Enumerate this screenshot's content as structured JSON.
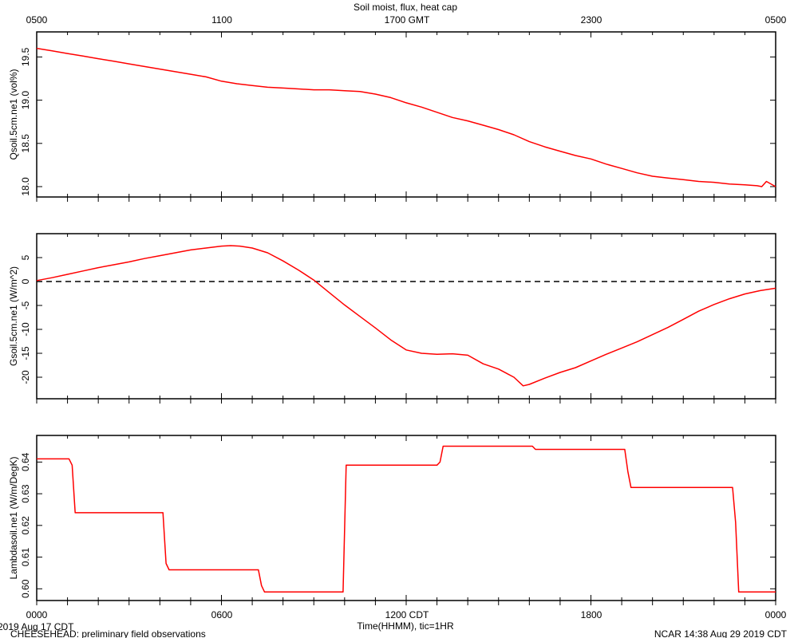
{
  "title": "Soil moist, flux, heat cap",
  "top_axis": {
    "ticks": [
      "0500",
      "1100",
      "1700 GMT",
      "2300",
      "0500"
    ]
  },
  "bottom_axis": {
    "ticks": [
      "0000",
      "0600",
      "1200 CDT",
      "1800",
      "0000"
    ],
    "label": "Time(HHMM), tic=1HR"
  },
  "footer": {
    "date": "2019 Aug 17 CDT",
    "project": "CHEESEHEAD: preliminary field observations",
    "stamp": "NCAR 14:38 Aug 29 2019 CDT"
  },
  "colors": {
    "series": "#ff0000",
    "axis": "#000000",
    "zero_line": "#000000"
  },
  "chart_data": [
    {
      "type": "line",
      "ylabel": "Qsoil.5cm.ne1 (vol%)",
      "ylim": [
        17.88,
        19.79
      ],
      "yticks": [
        18.0,
        18.5,
        19.0,
        19.5
      ],
      "ytick_labels": [
        "18.0",
        "18.5",
        "19.0",
        "19.5"
      ],
      "x_hours": [
        0,
        0.5,
        1,
        1.5,
        2,
        2.5,
        3,
        3.5,
        4,
        4.5,
        5,
        5.5,
        6,
        6.5,
        7,
        7.5,
        8,
        8.5,
        9,
        9.5,
        10,
        10.5,
        11,
        11.5,
        12,
        12.5,
        13,
        13.5,
        14,
        14.5,
        15,
        15.5,
        16,
        16.5,
        17,
        17.5,
        18,
        18.5,
        19,
        19.5,
        20,
        20.5,
        21,
        21.5,
        22,
        22.5,
        23,
        23.4,
        23.55,
        23.7,
        24
      ],
      "values": [
        19.6,
        19.57,
        19.54,
        19.51,
        19.48,
        19.45,
        19.42,
        19.39,
        19.36,
        19.33,
        19.3,
        19.27,
        19.22,
        19.19,
        19.17,
        19.15,
        19.14,
        19.13,
        19.12,
        19.12,
        19.11,
        19.1,
        19.07,
        19.03,
        18.97,
        18.92,
        18.86,
        18.8,
        18.76,
        18.71,
        18.66,
        18.6,
        18.52,
        18.46,
        18.41,
        18.36,
        18.32,
        18.26,
        18.21,
        18.16,
        18.12,
        18.1,
        18.08,
        18.06,
        18.05,
        18.03,
        18.02,
        18.01,
        18.0,
        18.06,
        18.0
      ]
    },
    {
      "type": "line",
      "ylabel": "Gsoil.5cm.ne1 (W/m^2)",
      "ylim": [
        -24.5,
        10
      ],
      "yticks": [
        -20,
        -15,
        -10,
        -5,
        0,
        5
      ],
      "ytick_labels": [
        "-20",
        "-15",
        "-10",
        "-5",
        "0",
        "5"
      ],
      "reference_line": 0,
      "x_hours": [
        0,
        0.5,
        1,
        1.5,
        2,
        2.5,
        3,
        3.5,
        4,
        4.5,
        5,
        5.5,
        6,
        6.3,
        6.6,
        7,
        7.5,
        8,
        8.5,
        9,
        9.5,
        10,
        10.5,
        11,
        11.5,
        12,
        12.5,
        13,
        13.5,
        14,
        14.5,
        15,
        15.5,
        15.8,
        16,
        16.5,
        17,
        17.5,
        18,
        18.5,
        19,
        19.5,
        20,
        20.5,
        21,
        21.5,
        22,
        22.5,
        23,
        23.5,
        24
      ],
      "values": [
        0.2,
        0.8,
        1.5,
        2.2,
        2.9,
        3.5,
        4.1,
        4.8,
        5.4,
        6.0,
        6.6,
        7.0,
        7.4,
        7.5,
        7.4,
        7.0,
        6.0,
        4.3,
        2.4,
        0.3,
        -2.3,
        -4.9,
        -7.3,
        -9.7,
        -12.2,
        -14.3,
        -15.0,
        -15.2,
        -15.1,
        -15.4,
        -17.2,
        -18.3,
        -20.0,
        -21.8,
        -21.5,
        -20.2,
        -19.0,
        -18.0,
        -16.6,
        -15.2,
        -13.9,
        -12.6,
        -11.1,
        -9.6,
        -7.9,
        -6.2,
        -4.8,
        -3.6,
        -2.6,
        -1.9,
        -1.4
      ]
    },
    {
      "type": "line",
      "ylabel": "Lambdasoil.ne1 (W/m/DegK)",
      "ylim": [
        0.5963,
        0.6484
      ],
      "yticks": [
        0.6,
        0.61,
        0.62,
        0.63,
        0.64
      ],
      "ytick_labels": [
        "0.60",
        "0.61",
        "0.62",
        "0.63",
        "0.64"
      ],
      "x_hours": [
        0,
        1.05,
        1.15,
        1.25,
        4.1,
        4.2,
        4.3,
        7.2,
        7.3,
        7.4,
        9.95,
        10.05,
        13.0,
        13.1,
        13.2,
        16.1,
        16.2,
        19.1,
        19.2,
        19.3,
        22.6,
        22.7,
        22.8,
        24
      ],
      "values": [
        0.641,
        0.641,
        0.639,
        0.624,
        0.624,
        0.608,
        0.606,
        0.606,
        0.601,
        0.599,
        0.599,
        0.639,
        0.639,
        0.64,
        0.645,
        0.645,
        0.644,
        0.644,
        0.637,
        0.632,
        0.632,
        0.621,
        0.599,
        0.599
      ]
    }
  ]
}
